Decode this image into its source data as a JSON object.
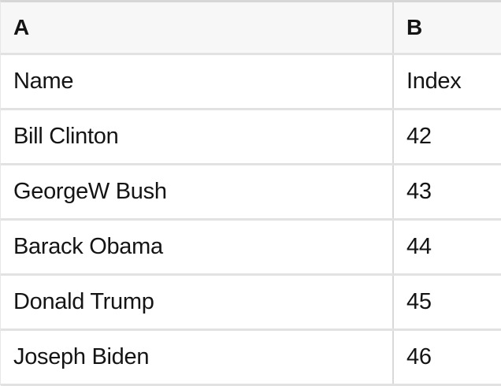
{
  "spreadsheet": {
    "column_headers": [
      {
        "label": "A"
      },
      {
        "label": "B"
      }
    ],
    "rows": [
      {
        "cells": [
          "Name",
          "Index"
        ]
      },
      {
        "cells": [
          "Bill Clinton",
          "42"
        ]
      },
      {
        "cells": [
          "GeorgeW Bush",
          "43"
        ]
      },
      {
        "cells": [
          "Barack Obama",
          "44"
        ]
      },
      {
        "cells": [
          "Donald Trump",
          "45"
        ]
      },
      {
        "cells": [
          "Joseph Biden",
          "46"
        ]
      }
    ],
    "colors": {
      "header_background": "#f7f7f7",
      "cell_background": "#ffffff",
      "grid_line": "#e2e2e2",
      "column_divider": "#d9d9d9",
      "top_border": "#d7d7d7",
      "text": "#141414"
    }
  }
}
